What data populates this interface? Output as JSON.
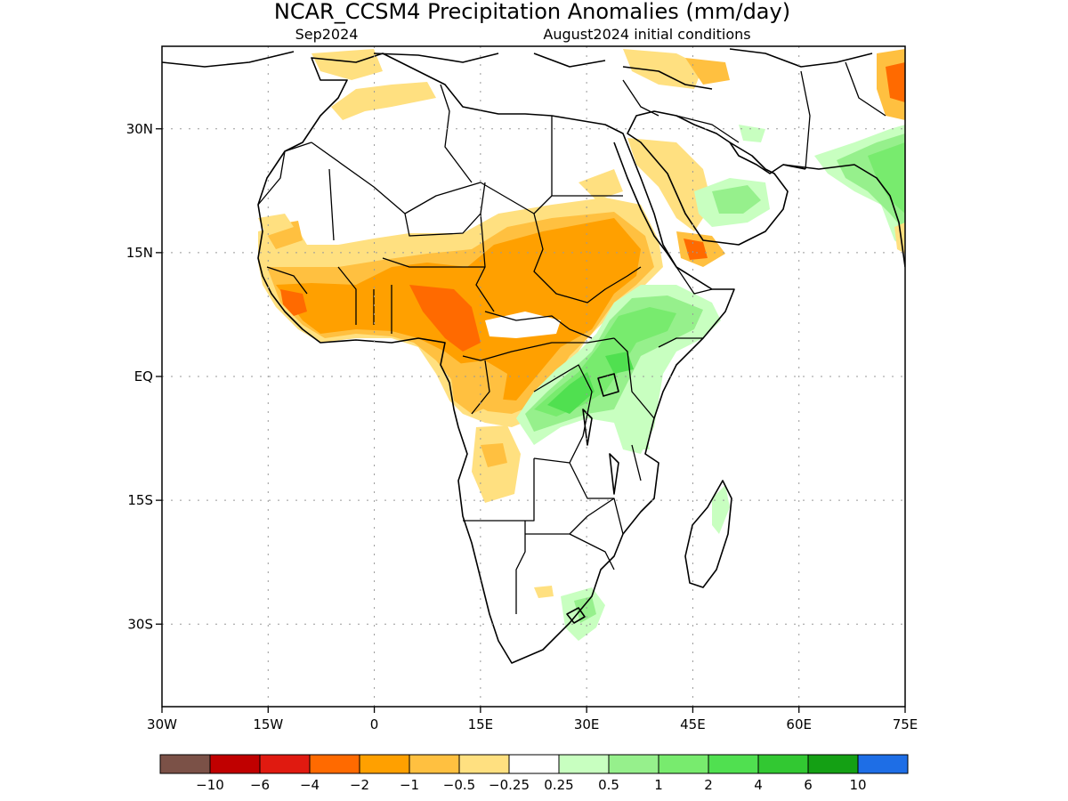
{
  "title": "NCAR_CCSM4 Precipitation Anomalies (mm/day)",
  "subtitle_left": "Sep2024",
  "subtitle_right": "August2024 initial conditions",
  "map": {
    "lat_labels": [
      "30N",
      "15N",
      "EQ",
      "15S",
      "30S"
    ],
    "lat_values": [
      30,
      15,
      0,
      -15,
      -30
    ],
    "lon_labels": [
      "30W",
      "15W",
      "0",
      "15E",
      "30E",
      "45E",
      "60E",
      "75E"
    ],
    "lon_values": [
      -30,
      -15,
      0,
      15,
      30,
      45,
      60,
      75
    ],
    "lon_range": [
      -30,
      75
    ],
    "lat_range": [
      -40,
      40
    ],
    "grid": true
  },
  "legend": {
    "colors": [
      "#7b5147",
      "#c00000",
      "#e01a10",
      "#ff6a00",
      "#ffa000",
      "#ffc040",
      "#ffe080",
      "#ffffff",
      "#c8ffc0",
      "#96f08c",
      "#78eb6e",
      "#50e050",
      "#32c832",
      "#14a014",
      "#1e6ee6"
    ],
    "labels": [
      "-10",
      "-6",
      "-4",
      "-2",
      "-1",
      "-0.5",
      "-0.25",
      "0.25",
      "0.5",
      "1",
      "2",
      "4",
      "6",
      "10"
    ]
  },
  "colors": {
    "dry_light": "#ffe080",
    "dry_mid": "#ffc040",
    "dry": "#ffa000",
    "dry_strong": "#ff6a00",
    "wet_light": "#c8ffc0",
    "wet_mid": "#96f08c",
    "wet": "#78eb6e",
    "wet_strong": "#50e050",
    "blue": "#1e6ee6"
  }
}
